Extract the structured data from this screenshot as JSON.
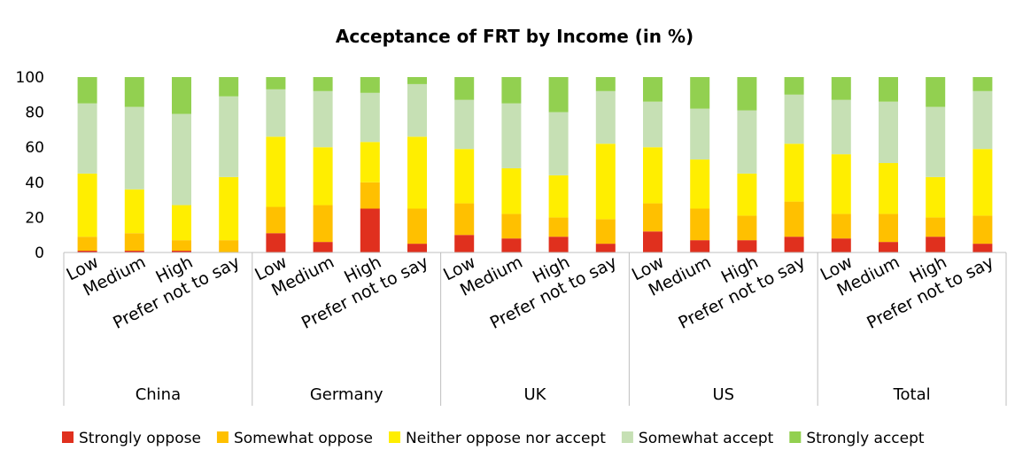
{
  "chart_data": {
    "type": "bar",
    "stacked": true,
    "title": "Acceptance of FRT by Income (in %)",
    "ylim": [
      0,
      100
    ],
    "yticks": [
      "0",
      "20",
      "40",
      "60",
      "80",
      "100"
    ],
    "grid": false,
    "legend_position": "bottom",
    "groups": [
      {
        "name": "China",
        "categories": [
          "Low",
          "Medium",
          "High",
          "Prefer not to say"
        ]
      },
      {
        "name": "Germany",
        "categories": [
          "Low",
          "Medium",
          "High",
          "Prefer not to say"
        ]
      },
      {
        "name": "UK",
        "categories": [
          "Low",
          "Medium",
          "High",
          "Prefer not to say"
        ]
      },
      {
        "name": "US",
        "categories": [
          "Low",
          "Medium",
          "High",
          "Prefer not to say"
        ]
      },
      {
        "name": "Total",
        "categories": [
          "Low",
          "Medium",
          "High",
          "Prefer not to say"
        ]
      }
    ],
    "series": [
      {
        "name": "Strongly oppose",
        "color": "#e0301e",
        "values": [
          1,
          1,
          1,
          0,
          11,
          6,
          25,
          5,
          10,
          8,
          9,
          5,
          12,
          7,
          7,
          9,
          8,
          6,
          9,
          5
        ]
      },
      {
        "name": "Somewhat oppose",
        "color": "#ffc000",
        "values": [
          8,
          10,
          6,
          7,
          15,
          21,
          15,
          20,
          18,
          14,
          11,
          14,
          16,
          18,
          14,
          20,
          14,
          16,
          11,
          16
        ]
      },
      {
        "name": "Neither oppose nor accept",
        "color": "#ffee00",
        "values": [
          36,
          25,
          20,
          36,
          40,
          33,
          23,
          41,
          31,
          26,
          24,
          43,
          32,
          28,
          24,
          33,
          34,
          29,
          23,
          38
        ]
      },
      {
        "name": "Somewhat accept",
        "color": "#c6e0b4",
        "values": [
          40,
          47,
          52,
          46,
          27,
          32,
          28,
          30,
          28,
          37,
          36,
          30,
          26,
          29,
          36,
          28,
          31,
          35,
          40,
          33
        ]
      },
      {
        "name": "Strongly accept",
        "color": "#92d050",
        "values": [
          15,
          17,
          21,
          11,
          7,
          8,
          9,
          4,
          13,
          15,
          20,
          8,
          14,
          18,
          19,
          10,
          13,
          14,
          17,
          8
        ]
      }
    ]
  }
}
